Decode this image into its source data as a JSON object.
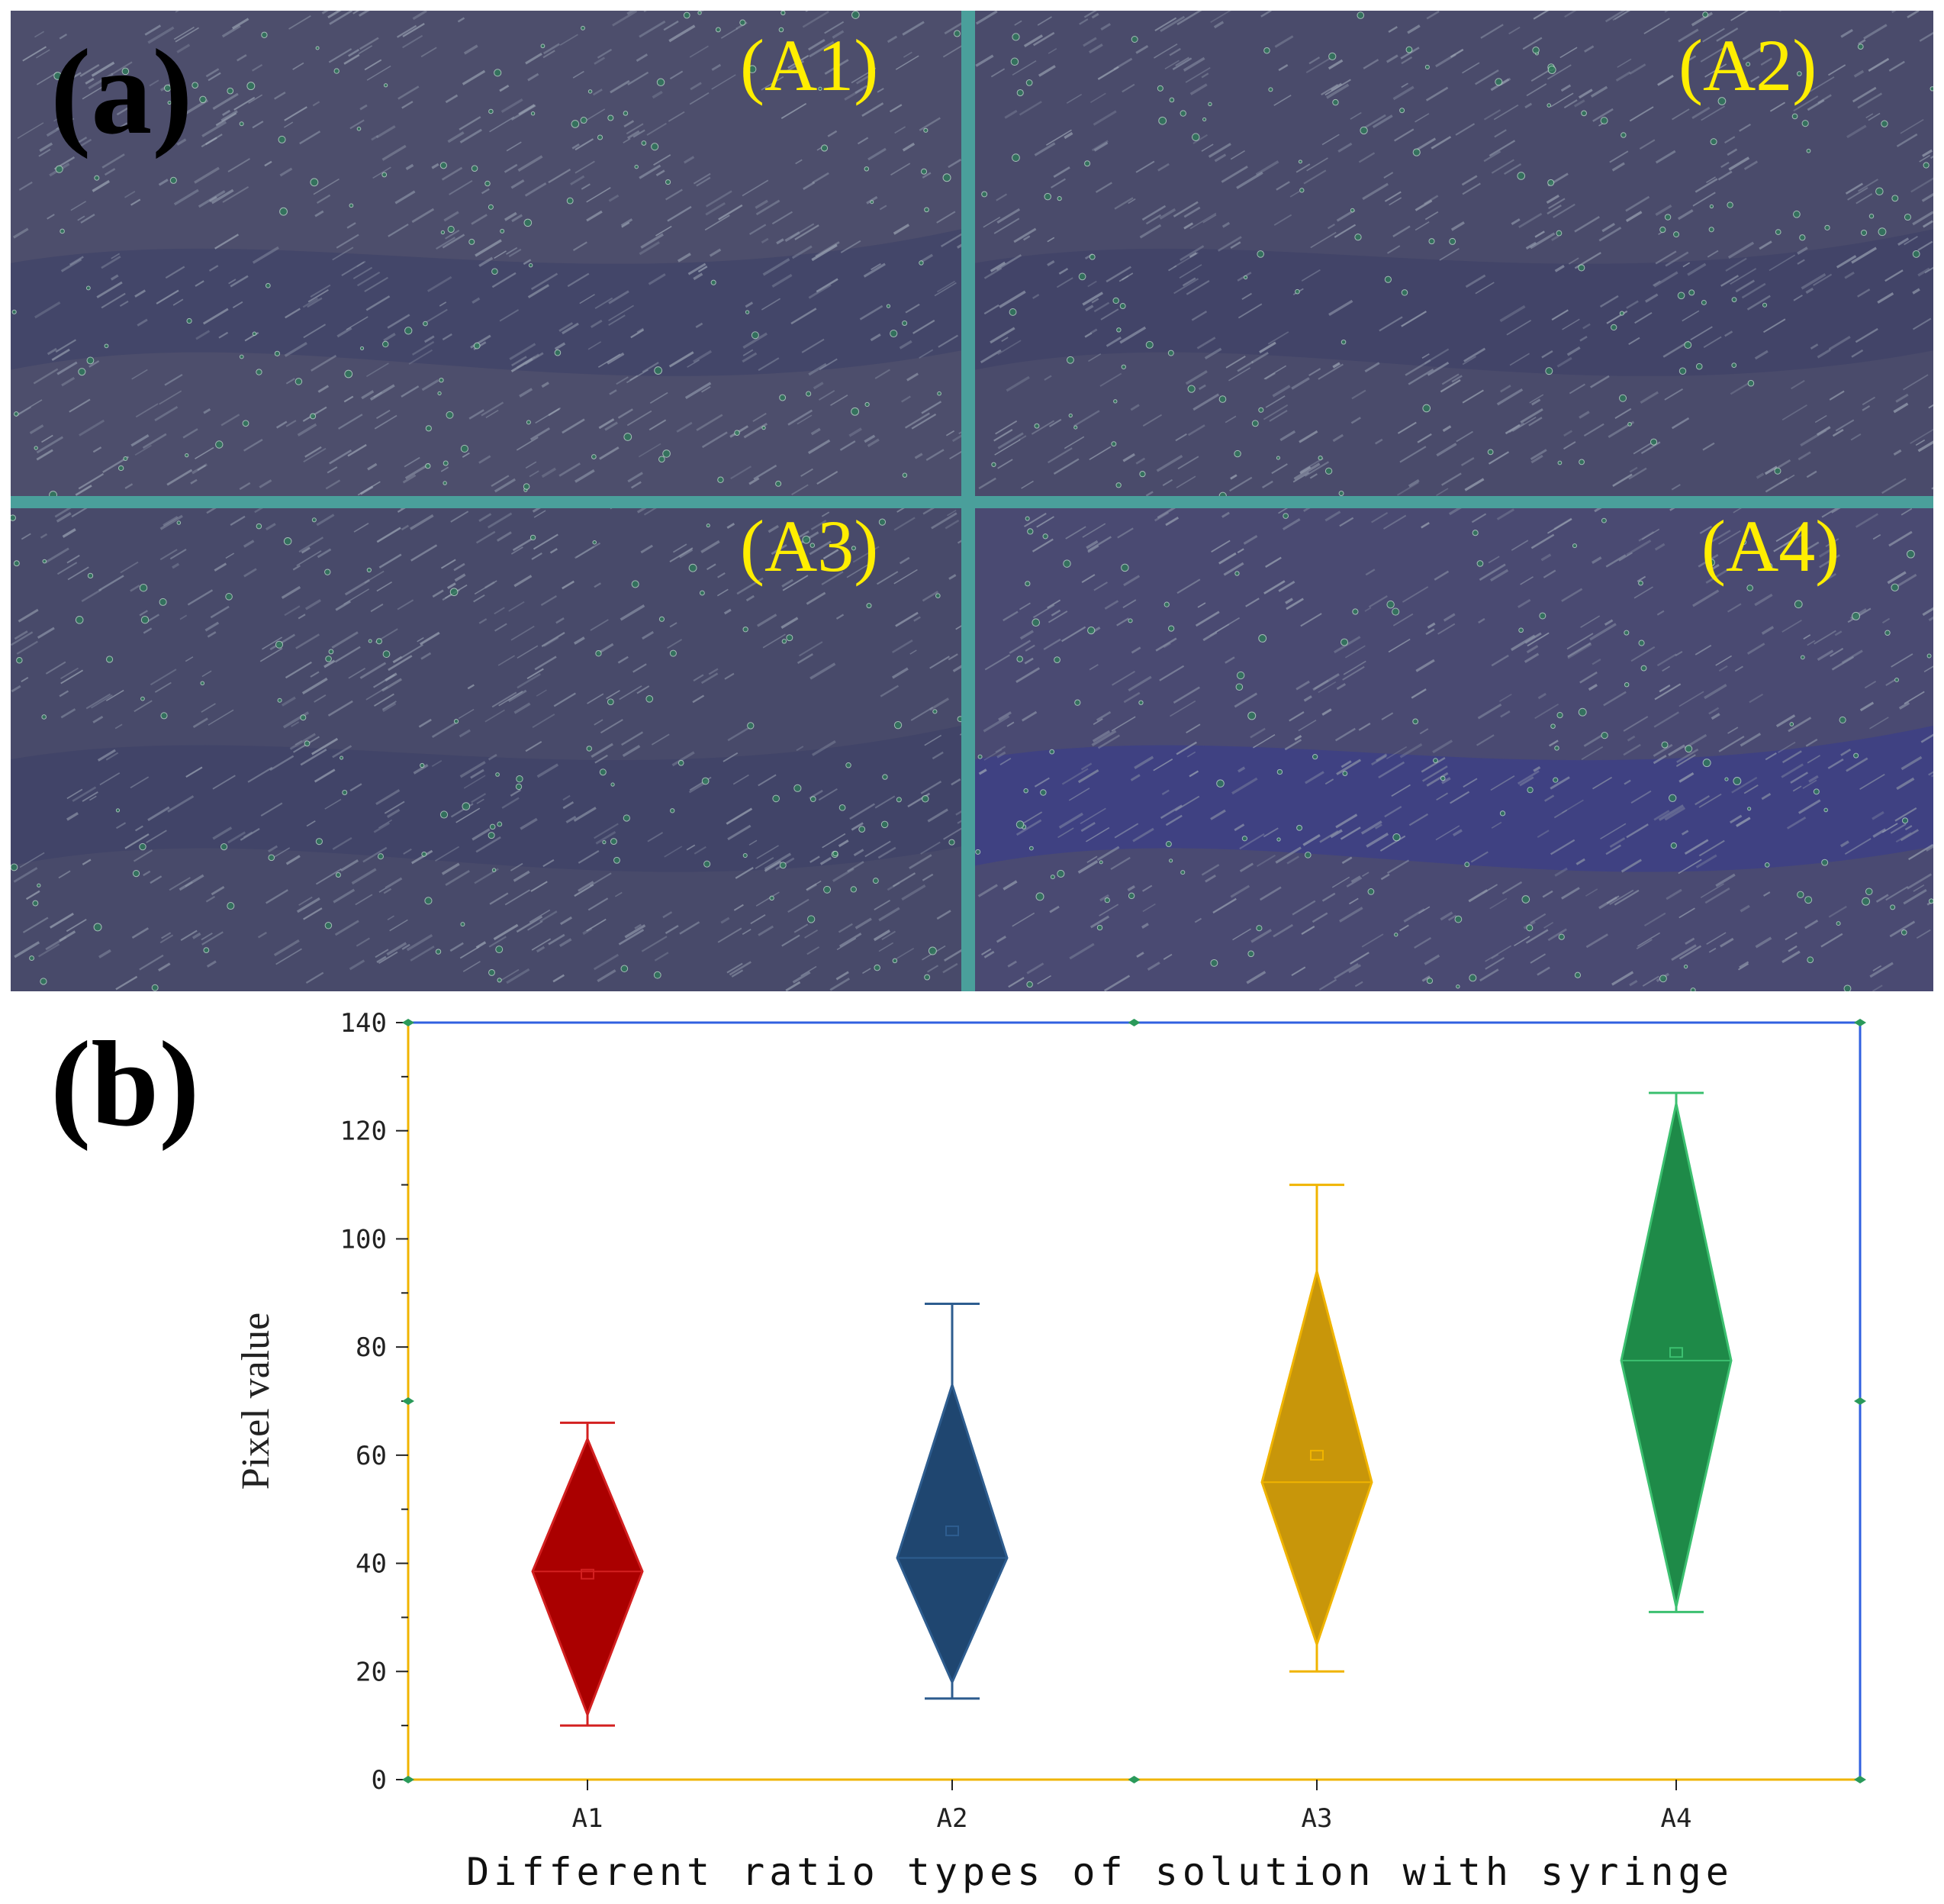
{
  "panel_a": {
    "letter": "(a)",
    "images": [
      {
        "label": "(A1)",
        "tint": "#4d4e6c"
      },
      {
        "label": "(A2)",
        "tint": "#4a4b6b"
      },
      {
        "label": "(A3)",
        "tint": "#484a6a"
      },
      {
        "label": "(A4)",
        "tint": "#4a4a72"
      }
    ],
    "label_color": "#ffee00",
    "separator_color": "#4a9f9b"
  },
  "panel_b": {
    "letter": "(b)"
  },
  "chart_data": {
    "type": "violin",
    "title": "",
    "xlabel": "Different ratio types of solution with syringe",
    "ylabel": "Pixel value",
    "ylim": [
      0,
      140
    ],
    "yticks": [
      0,
      20,
      40,
      60,
      80,
      100,
      120,
      140
    ],
    "categories": [
      "A1",
      "A2",
      "A3",
      "A4"
    ],
    "series": [
      {
        "name": "A1",
        "min": 10,
        "max": 66,
        "median": 38.5,
        "mean": 38,
        "range_low": 12,
        "range_high": 63,
        "color": "#aa0000",
        "edge": "#d32020"
      },
      {
        "name": "A2",
        "min": 15,
        "max": 88,
        "median": 41,
        "mean": 46,
        "range_low": 18,
        "range_high": 73,
        "color": "#1f4670",
        "edge": "#2e5d8f"
      },
      {
        "name": "A3",
        "min": 20,
        "max": 110,
        "median": 55,
        "mean": 60,
        "range_low": 25,
        "range_high": 94,
        "color": "#c8960a",
        "edge": "#f0b400"
      },
      {
        "name": "A4",
        "min": 31,
        "max": 127,
        "median": 77.5,
        "mean": 79,
        "range_low": 32,
        "range_high": 125,
        "color": "#1e8a48",
        "edge": "#3cc070"
      }
    ],
    "left_axis_color": "#f0b400",
    "right_axis_color": "#3060e0"
  }
}
